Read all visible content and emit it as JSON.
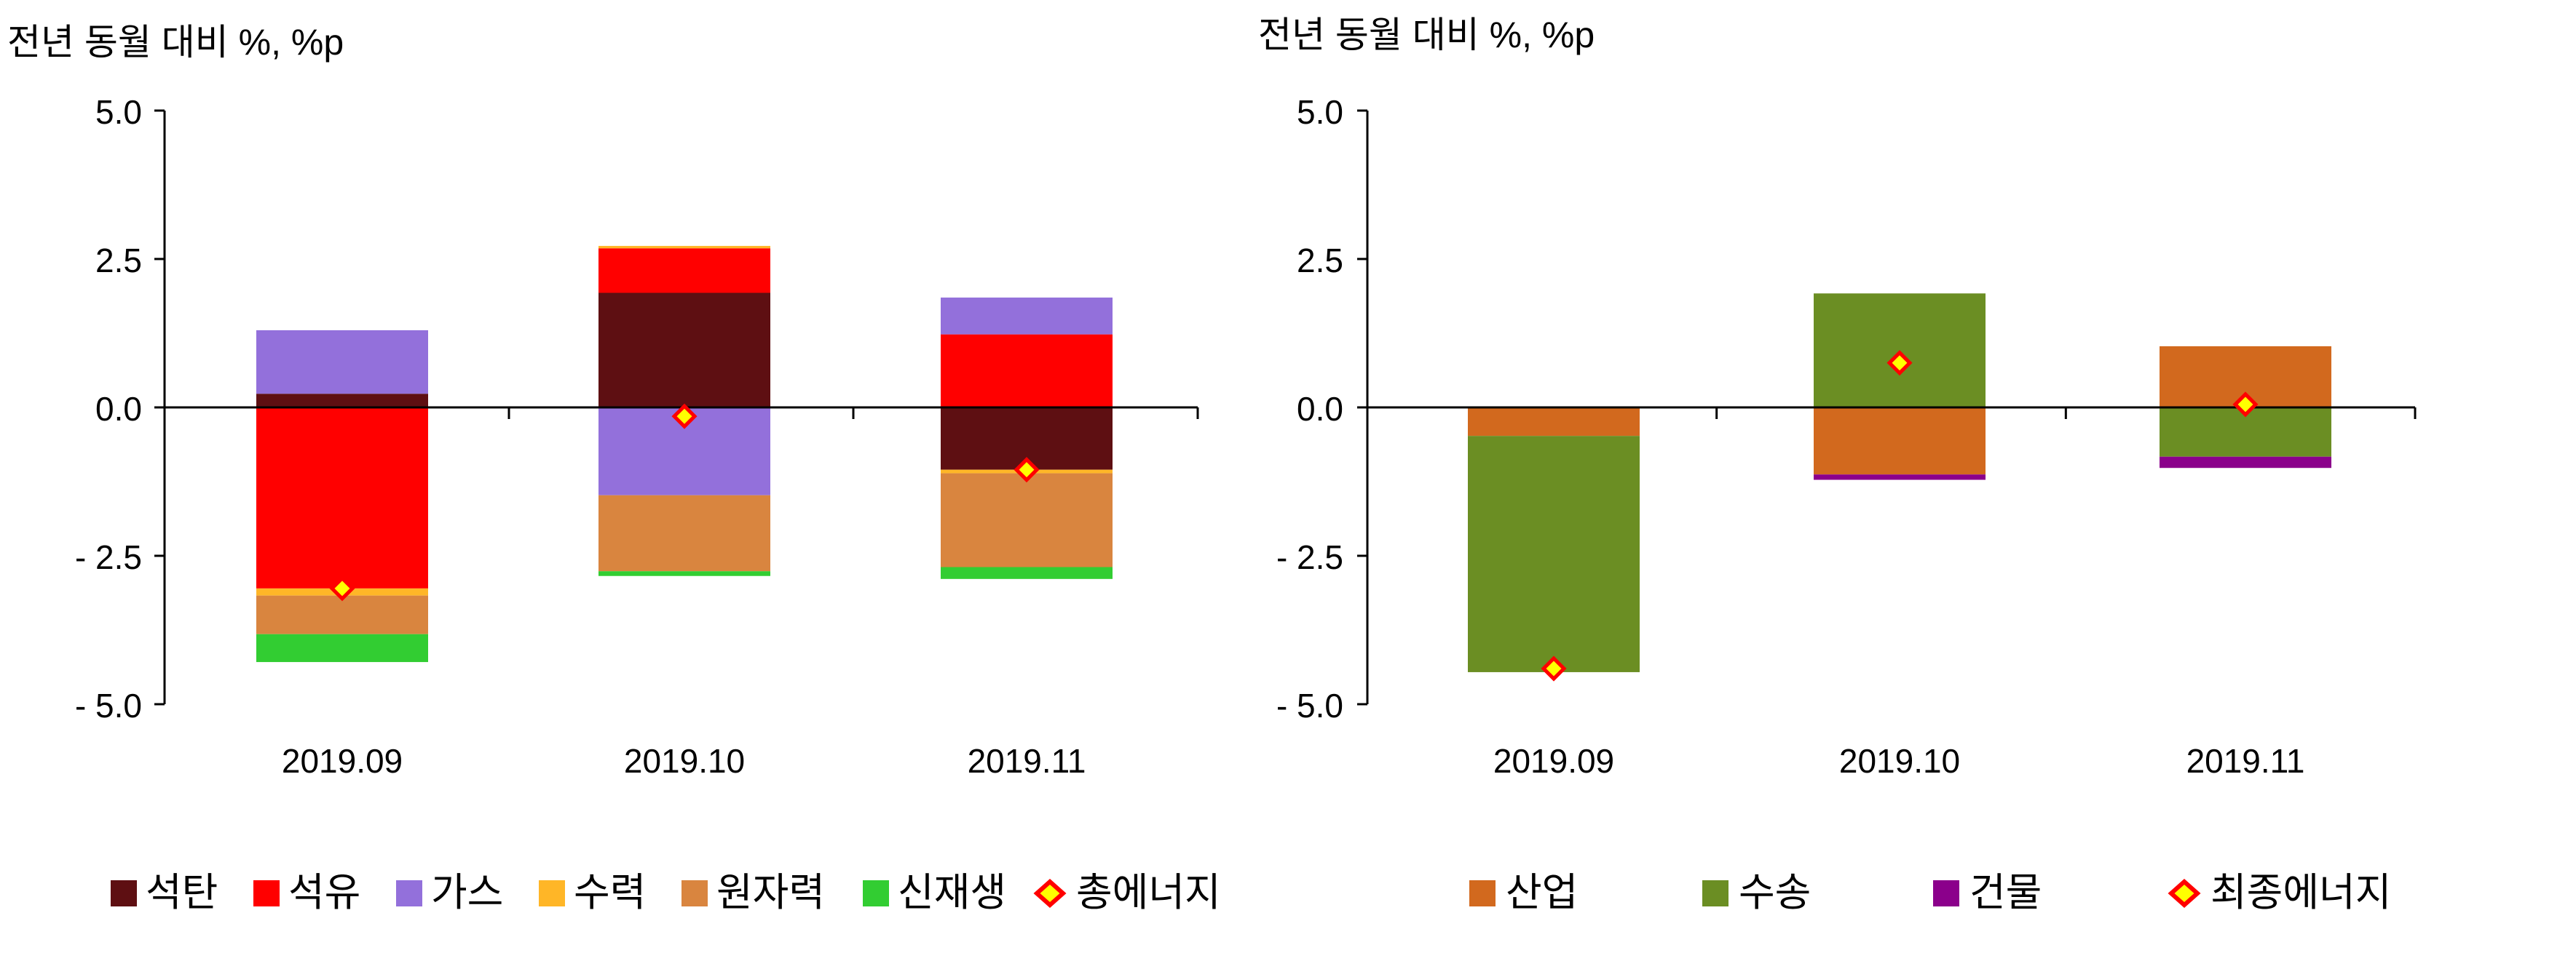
{
  "chart_data": [
    {
      "type": "bar",
      "stacked": true,
      "unit_label": "전년 동월 대비 %, %p",
      "ylim": [
        -5.0,
        5.0
      ],
      "yticks": [
        "5.0",
        "2.5",
        "0.0",
        "- 2.5",
        "- 5.0"
      ],
      "ytick_values": [
        5.0,
        2.5,
        0.0,
        -2.5,
        -5.0
      ],
      "categories": [
        "2019.09",
        "2019.10",
        "2019.11"
      ],
      "legend_position": "bottom",
      "series": [
        {
          "name": "석탄",
          "color": "#5e0f12",
          "values": [
            0.23,
            1.93,
            -1.05
          ]
        },
        {
          "name": "석유",
          "color": "#ff0000",
          "values": [
            -3.05,
            0.75,
            1.23
          ]
        },
        {
          "name": "가스",
          "color": "#9370db",
          "values": [
            1.07,
            -1.48,
            0.62
          ]
        },
        {
          "name": "수력",
          "color": "#ffb627",
          "values": [
            -0.12,
            0.04,
            -0.06
          ]
        },
        {
          "name": "원자력",
          "color": "#d9853f",
          "values": [
            -0.65,
            -1.28,
            -1.58
          ]
        },
        {
          "name": "신재생",
          "color": "#32cd32",
          "values": [
            -0.47,
            -0.08,
            -0.2
          ]
        }
      ],
      "total": {
        "name": "총에너지",
        "values": [
          -3.05,
          -0.15,
          -1.05
        ]
      }
    },
    {
      "type": "bar",
      "stacked": true,
      "unit_label": "전년 동월 대비 %, %p",
      "ylim": [
        -5.0,
        5.0
      ],
      "yticks": [
        "5.0",
        "2.5",
        "0.0",
        "- 2.5",
        "- 5.0"
      ],
      "ytick_values": [
        5.0,
        2.5,
        0.0,
        -2.5,
        -5.0
      ],
      "categories": [
        "2019.09",
        "2019.10",
        "2019.11"
      ],
      "legend_position": "bottom",
      "series": [
        {
          "name": "산업",
          "color": "#d2691e",
          "values": [
            -0.48,
            -1.13,
            1.03
          ]
        },
        {
          "name": "수송",
          "color": "#6b8e23",
          "values": [
            -3.98,
            1.92,
            -0.83
          ]
        },
        {
          "name": "건물",
          "color": "#8b008b",
          "values": [
            0.0,
            -0.09,
            -0.19
          ]
        }
      ],
      "total": {
        "name": "최종에너지",
        "values": [
          -4.4,
          0.75,
          0.05
        ]
      }
    }
  ]
}
